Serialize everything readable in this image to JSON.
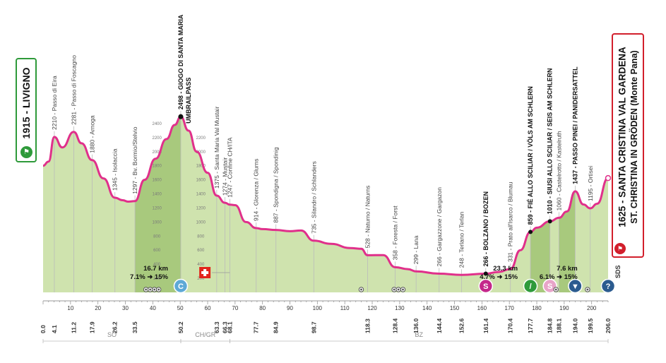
{
  "start": {
    "name": "1915 - LIVIGNO"
  },
  "finish": {
    "name_line1": "1625 - SANTA CRISTINA VAL GARDENA",
    "name_line2": "ST. CHRISTINA IN GRÖDEN (Monte Pana)"
  },
  "sds": "SDS",
  "colors": {
    "profile_line": "#e0308b",
    "fill_green": "#cfe3ae",
    "fill_dark_green": "#a8c97d",
    "start_border": "#2e9a3a",
    "finish_border": "#d21f2c",
    "swiss_flag": "#e2231a"
  },
  "altitude_scale": [
    "2400",
    "2200",
    "2000",
    "1800",
    "1600",
    "1400",
    "1200",
    "1000",
    "800",
    "600",
    "400",
    "200"
  ],
  "profile_points": [
    [
      0,
      1800
    ],
    [
      2,
      1860
    ],
    [
      4.1,
      2210
    ],
    [
      7,
      2060
    ],
    [
      11.2,
      2281
    ],
    [
      14,
      2120
    ],
    [
      17.9,
      1880
    ],
    [
      22,
      1620
    ],
    [
      26.2,
      1345
    ],
    [
      29,
      1310
    ],
    [
      31,
      1290
    ],
    [
      33.5,
      1297
    ],
    [
      37,
      1600
    ],
    [
      41,
      1900
    ],
    [
      45,
      2180
    ],
    [
      48,
      2380
    ],
    [
      50.2,
      2498
    ],
    [
      53,
      2300
    ],
    [
      56,
      2000
    ],
    [
      60,
      1700
    ],
    [
      63.3,
      1375
    ],
    [
      66.3,
      1274
    ],
    [
      68.1,
      1247
    ],
    [
      70,
      1240
    ],
    [
      74,
      1000
    ],
    [
      77.7,
      914
    ],
    [
      80,
      900
    ],
    [
      84.9,
      887
    ],
    [
      90,
      870
    ],
    [
      94,
      880
    ],
    [
      98.7,
      735
    ],
    [
      105,
      690
    ],
    [
      112,
      630
    ],
    [
      116,
      620
    ],
    [
      118.3,
      528
    ],
    [
      124,
      530
    ],
    [
      128.4,
      358
    ],
    [
      133,
      330
    ],
    [
      136,
      299
    ],
    [
      144.4,
      266
    ],
    [
      152.6,
      248
    ],
    [
      161.4,
      266
    ],
    [
      166,
      290
    ],
    [
      170.4,
      331
    ],
    [
      174,
      600
    ],
    [
      177.7,
      859
    ],
    [
      180,
      920
    ],
    [
      184.8,
      1010
    ],
    [
      188.1,
      1060
    ],
    [
      191,
      1150
    ],
    [
      194,
      1437
    ],
    [
      197,
      1250
    ],
    [
      199.5,
      1195
    ],
    [
      202,
      1260
    ],
    [
      206,
      1625
    ]
  ],
  "dark_segments": [
    [
      33.5,
      50.2
    ],
    [
      177.7,
      184.8
    ],
    [
      188.1,
      194.0
    ]
  ],
  "climb_labels": [
    {
      "km": 4.1,
      "text": "2210 - Passo di Eira",
      "bold": false
    },
    {
      "km": 11.2,
      "text": "2281 - Passo di Foscagno",
      "bold": false
    },
    {
      "km": 17.9,
      "text": "1880 - Arnoga",
      "bold": false
    },
    {
      "km": 26.2,
      "text": "1345 - Isolaccia",
      "bold": false
    },
    {
      "km": 33.5,
      "text": "1297 - Bv. Bormio/Stelvio",
      "bold": false
    },
    {
      "km": 50.2,
      "text": "2498 - GIOGO DI SANTA MARIA",
      "bold": true
    },
    {
      "km": 53.0,
      "text": "UMBRAILPASS",
      "bold": true
    },
    {
      "km": 63.3,
      "text": "1375 - Santa Maria Val Mustair",
      "bold": false
    },
    {
      "km": 66.3,
      "text": "1274 - Mustair",
      "bold": false
    },
    {
      "km": 68.1,
      "text": "1247 - Confine CH/ITA",
      "bold": false
    },
    {
      "km": 77.7,
      "text": "914 - Glorenza / Glurns",
      "bold": false
    },
    {
      "km": 84.9,
      "text": "887 - Spondigna / Spondinig",
      "bold": false
    },
    {
      "km": 98.7,
      "text": "735 - Silandro / Schlanders",
      "bold": false
    },
    {
      "km": 118.3,
      "text": "528 - Naturno / Naturns",
      "bold": false
    },
    {
      "km": 128.4,
      "text": "358 - Foresta / Forst",
      "bold": false
    },
    {
      "km": 136.0,
      "text": "299 - Lana",
      "bold": false
    },
    {
      "km": 144.4,
      "text": "266 - Gargazzone / Gargazon",
      "bold": false
    },
    {
      "km": 152.6,
      "text": "248 - Terlano / Terlan",
      "bold": false
    },
    {
      "km": 161.4,
      "text": "266 - BOLZANO / BOZEN",
      "bold": true
    },
    {
      "km": 170.4,
      "text": "331 - Prato all'Isarco / Blumau",
      "bold": false
    },
    {
      "km": 177.7,
      "text": "859 - FIÉ ALLO SCILIAR / VÖLS AM SCHLERN",
      "bold": true
    },
    {
      "km": 184.8,
      "text": "1010 - SIUSI ALLO SCILIAR / SEIS AM SCHLERN",
      "bold": true
    },
    {
      "km": 188.1,
      "text": "1060 - Castelrotto / Kastelruth",
      "bold": false
    },
    {
      "km": 194.0,
      "text": "1437 - PASSO PINEI / PANIDERSATTEL",
      "bold": true
    },
    {
      "km": 199.5,
      "text": "1195 - Ortisei",
      "bold": false
    }
  ],
  "axis_ticks": [
    "10",
    "20",
    "30",
    "40",
    "50",
    "60",
    "70",
    "80",
    "90",
    "100",
    "110",
    "120",
    "130",
    "140",
    "150",
    "160",
    "170",
    "180",
    "190",
    "200"
  ],
  "km_labels": [
    {
      "km": 0,
      "text": "0.0",
      "bold": true
    },
    {
      "km": 4.1,
      "text": "4.1",
      "bold": false
    },
    {
      "km": 11.2,
      "text": "11.2",
      "bold": false
    },
    {
      "km": 17.9,
      "text": "17.9",
      "bold": false
    },
    {
      "km": 26.2,
      "text": "26.2",
      "bold": false
    },
    {
      "km": 33.5,
      "text": "33.5",
      "bold": false
    },
    {
      "km": 50.2,
      "text": "50.2",
      "bold": true
    },
    {
      "km": 63.3,
      "text": "63.3",
      "bold": false
    },
    {
      "km": 66.3,
      "text": "66.3",
      "bold": false
    },
    {
      "km": 68.1,
      "text": "68.1",
      "bold": false
    },
    {
      "km": 77.7,
      "text": "77.7",
      "bold": false
    },
    {
      "km": 84.9,
      "text": "84.9",
      "bold": false
    },
    {
      "km": 98.7,
      "text": "98.7",
      "bold": false
    },
    {
      "km": 118.3,
      "text": "118.3",
      "bold": false
    },
    {
      "km": 128.4,
      "text": "128.4",
      "bold": false
    },
    {
      "km": 136.0,
      "text": "136.0",
      "bold": false
    },
    {
      "km": 144.4,
      "text": "144.4",
      "bold": false
    },
    {
      "km": 152.6,
      "text": "152.6",
      "bold": false
    },
    {
      "km": 161.4,
      "text": "161.4",
      "bold": true
    },
    {
      "km": 170.4,
      "text": "170.4",
      "bold": false
    },
    {
      "km": 177.7,
      "text": "177.7",
      "bold": true
    },
    {
      "km": 184.8,
      "text": "184.8",
      "bold": true
    },
    {
      "km": 188.1,
      "text": "188.1",
      "bold": false
    },
    {
      "km": 194.0,
      "text": "194.0",
      "bold": true
    },
    {
      "km": 199.5,
      "text": "199.5",
      "bold": false
    },
    {
      "km": 206.0,
      "text": "206.0",
      "bold": true
    }
  ],
  "regions": [
    {
      "text": "SO",
      "from": 0,
      "to": 50.2
    },
    {
      "text": "CH/GR",
      "from": 50.2,
      "to": 68.1
    },
    {
      "text": "BZ",
      "from": 68.1,
      "to": 206
    }
  ],
  "gradient_boxes": [
    {
      "km": 50.2,
      "line1": "16.7 km",
      "line2": "7.1% ➜ 15%"
    },
    {
      "km": 177.7,
      "line1": "23.3 km",
      "line2": "4.7% ➜ 15%"
    },
    {
      "km": 199.5,
      "line1": "7.6 km",
      "line2": "6.1% ➜ 15%"
    }
  ],
  "markers": [
    {
      "km": 50.2,
      "letter": "C",
      "color": "#5ea9d6",
      "icon": "climb-category-c-icon"
    },
    {
      "km": 161.4,
      "letter": "S",
      "color": "#c4278a",
      "icon": "sprint-icon"
    },
    {
      "km": 177.7,
      "letter": "/",
      "color": "#2e9a3a",
      "icon": "intermediate-sprint-icon"
    },
    {
      "km": 184.8,
      "letter": "S",
      "color": "#e8a4c9",
      "icon": "sprint-light-icon"
    },
    {
      "km": 194.0,
      "letter": "▼",
      "color": "#2b5b8f",
      "icon": "gpm-icon"
    },
    {
      "km": 206.0,
      "letter": "?",
      "color": "#2b5b8f",
      "icon": "finish-climb-icon"
    }
  ],
  "tunnel_groups": [
    {
      "km": 37.5,
      "count": 4
    },
    {
      "km": 116,
      "count": 1
    },
    {
      "km": 128,
      "count": 2
    },
    {
      "km": 131.2,
      "count": 1
    },
    {
      "km": 187,
      "count": 1
    },
    {
      "km": 198.5,
      "count": 1
    }
  ]
}
